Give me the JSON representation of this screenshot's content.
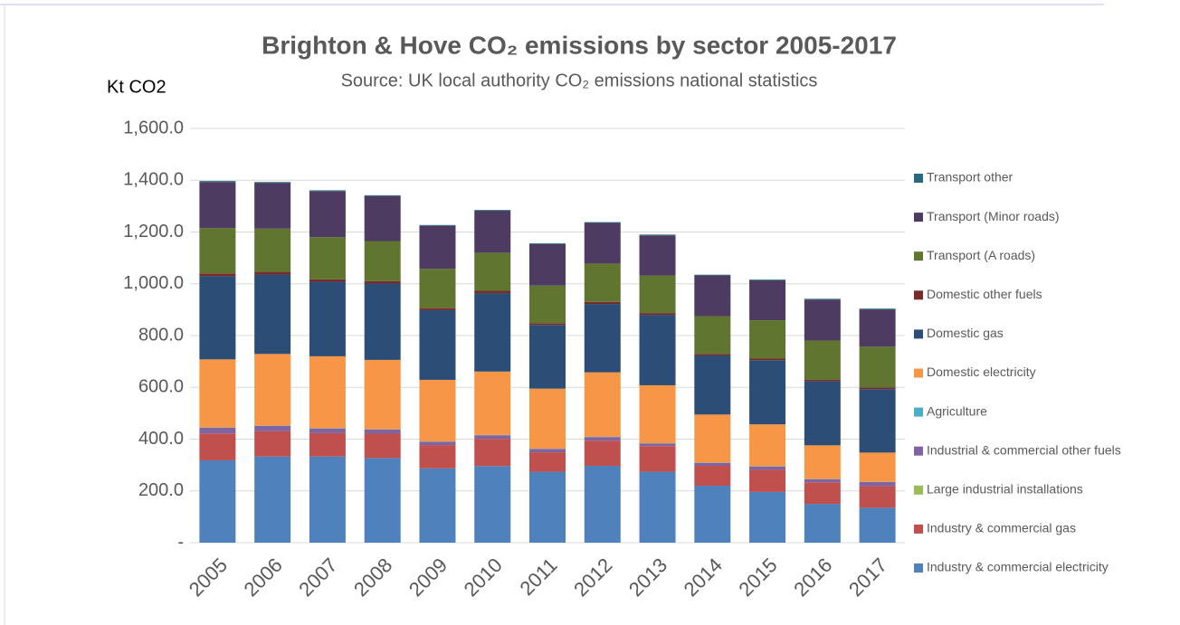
{
  "chart_data": {
    "type": "stacked_bar",
    "title": "Brighton & Hove CO₂ emissions by sector 2005-2017",
    "subtitle": "Source: UK local authority CO₂ emissions national statistics",
    "y_label": "Kt CO2",
    "categories": [
      "2005",
      "2006",
      "2007",
      "2008",
      "2009",
      "2010",
      "2011",
      "2012",
      "2013",
      "2014",
      "2015",
      "2016",
      "2017"
    ],
    "series": [
      {
        "name": "Industry & commercial electricity",
        "color": "#4f81bd",
        "values": [
          318,
          333,
          333,
          327,
          287,
          296,
          274,
          297,
          274,
          220,
          196,
          150,
          135
        ]
      },
      {
        "name": "Industry & commercial gas",
        "color": "#c0504d",
        "values": [
          104,
          98,
          90,
          94,
          90,
          105,
          75,
          97,
          99,
          77,
          85,
          83,
          83
        ]
      },
      {
        "name": "Large industrial installations",
        "color": "#9bbb59",
        "values": [
          0,
          0,
          0,
          0,
          0,
          0,
          0,
          0,
          0,
          0,
          0,
          0,
          0
        ]
      },
      {
        "name": "Industrial & commercial other fuels",
        "color": "#8064a2",
        "values": [
          22,
          20,
          18,
          16,
          13,
          14,
          13,
          14,
          10,
          11,
          13,
          12,
          16
        ]
      },
      {
        "name": "Agriculture",
        "color": "#4bacc6",
        "values": [
          1,
          1,
          1,
          1,
          1,
          1,
          1,
          1,
          1,
          1,
          1,
          1,
          1
        ]
      },
      {
        "name": "Domestic electricity",
        "color": "#f79646",
        "values": [
          263,
          277,
          278,
          268,
          238,
          245,
          232,
          249,
          224,
          186,
          162,
          130,
          113
        ]
      },
      {
        "name": "Domestic gas",
        "color": "#2c4d75",
        "values": [
          322,
          307,
          288,
          295,
          269,
          303,
          246,
          264,
          272,
          228,
          248,
          248,
          245
        ]
      },
      {
        "name": "Domestic other fuels",
        "color": "#772c2a",
        "values": [
          10,
          10,
          9,
          9,
          8,
          9,
          7,
          8,
          7,
          6,
          6,
          6,
          7
        ]
      },
      {
        "name": "Transport (A roads)",
        "color": "#5f7530",
        "values": [
          175,
          167,
          163,
          155,
          152,
          147,
          145,
          148,
          145,
          146,
          148,
          151,
          157
        ]
      },
      {
        "name": "Transport (Minor roads)",
        "color": "#4d3b62",
        "values": [
          178,
          177,
          178,
          174,
          166,
          162,
          160,
          157,
          155,
          157,
          154,
          158,
          144
        ]
      },
      {
        "name": "Transport other",
        "color": "#276a7c",
        "values": [
          4,
          3,
          3,
          3,
          3,
          3,
          3,
          3,
          3,
          3,
          3,
          3,
          3
        ]
      }
    ],
    "ylim": [
      0,
      1600
    ],
    "yticks": [
      {
        "value": 0,
        "label": "-"
      },
      {
        "value": 200,
        "label": "200.0"
      },
      {
        "value": 400,
        "label": "400.0"
      },
      {
        "value": 600,
        "label": "600.0"
      },
      {
        "value": 800,
        "label": "800.0"
      },
      {
        "value": 1000,
        "label": "1,000.0"
      },
      {
        "value": 1200,
        "label": "1,200.0"
      },
      {
        "value": 1400,
        "label": "1,400.0"
      },
      {
        "value": 1600,
        "label": "1,600.0"
      }
    ],
    "grid": true,
    "legend": "right"
  }
}
